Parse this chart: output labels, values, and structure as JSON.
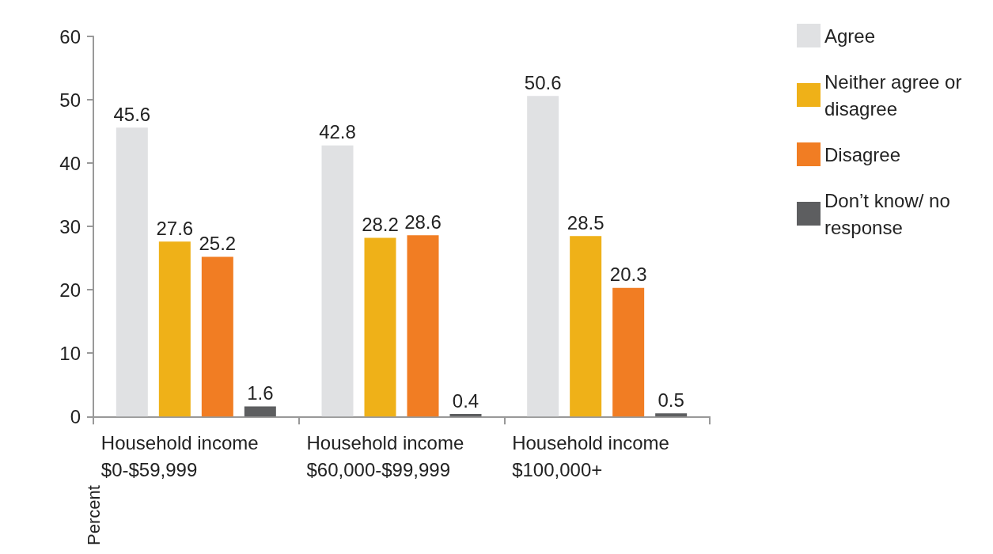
{
  "chart_data": {
    "type": "bar",
    "ylabel": "Percent",
    "categories": [
      "Household income $0-$59,999",
      "Household income $60,000-$99,999",
      "Household income $100,000+"
    ],
    "series": [
      {
        "name": "Agree",
        "color": "#e0e1e3",
        "values": [
          45.6,
          42.8,
          50.6
        ]
      },
      {
        "name": "Neither agree or disagree",
        "color": "#efb118",
        "values": [
          27.6,
          28.2,
          28.5
        ]
      },
      {
        "name": "Disagree",
        "color": "#f17d23",
        "values": [
          25.2,
          28.6,
          20.3
        ]
      },
      {
        "name": "Don’t know/ no response",
        "color": "#5d5e60",
        "values": [
          1.6,
          0.4,
          0.5
        ]
      }
    ],
    "ylim": [
      0,
      60
    ],
    "yticks": [
      0,
      10,
      20,
      30,
      40,
      50,
      60
    ],
    "grid": false,
    "legend": "top right",
    "data_labels": true
  }
}
